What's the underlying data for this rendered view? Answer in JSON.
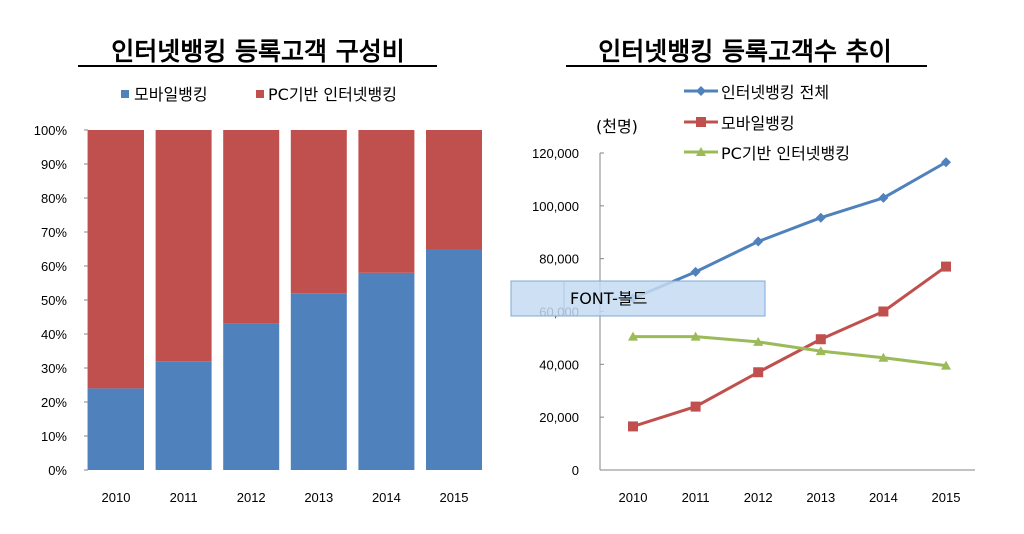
{
  "chart_data": [
    {
      "type": "bar",
      "stacked": true,
      "title": "인터넷뱅킹 등록고객 구성비",
      "categories": [
        "2010",
        "2011",
        "2012",
        "2013",
        "2014",
        "2015"
      ],
      "series": [
        {
          "name": "모바일뱅킹",
          "color": "#4f81bd",
          "values": [
            24,
            32,
            43,
            52,
            58,
            65
          ]
        },
        {
          "name": "PC기반 인터넷뱅킹",
          "color": "#c0504d",
          "values": [
            76,
            68,
            57,
            48,
            42,
            35
          ]
        }
      ],
      "ylim": [
        0,
        100
      ],
      "yticks": [
        "0%",
        "10%",
        "20%",
        "30%",
        "40%",
        "50%",
        "60%",
        "70%",
        "80%",
        "90%",
        "100%"
      ],
      "legend": "top",
      "grid": false
    },
    {
      "type": "line",
      "title": "인터넷뱅킹 등록고객수 추이",
      "ylabel": "(천명)",
      "categories": [
        "2010",
        "2011",
        "2012",
        "2013",
        "2014",
        "2015"
      ],
      "series": [
        {
          "name": "인터넷뱅킹 전체",
          "color": "#4f81bd",
          "marker": "diamond",
          "values": [
            65000,
            75000,
            86500,
            95500,
            103000,
            116500
          ]
        },
        {
          "name": "모바일뱅킹",
          "color": "#c0504d",
          "marker": "square",
          "values": [
            16500,
            24000,
            37000,
            49500,
            60000,
            77000
          ]
        },
        {
          "name": "PC기반 인터넷뱅킹",
          "color": "#9bbb59",
          "marker": "triangle",
          "values": [
            50500,
            50500,
            48500,
            45000,
            42500,
            39500
          ]
        }
      ],
      "ylim": [
        0,
        120000
      ],
      "yticks": [
        "0",
        "20,000",
        "40,000",
        "60,000",
        "80,000",
        "100,000",
        "120,000"
      ],
      "legend": "top",
      "grid": false,
      "overlay_label": "FONT-볼드"
    }
  ]
}
